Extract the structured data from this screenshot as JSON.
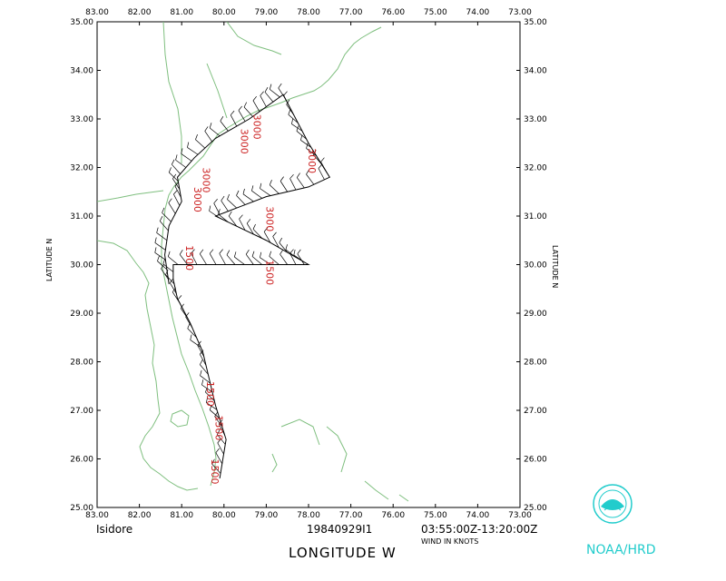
{
  "header": {
    "storm_name": "Isidore",
    "flight_id": "19840929I1",
    "time_range": "03:55:00Z-13:20:00Z",
    "wind_units": "WIND IN KNOTS"
  },
  "axes": {
    "x_title": "LONGITUDE   W",
    "y_title": "LATITUDE   N",
    "x_ticks": [
      "83.00",
      "82.00",
      "81.00",
      "80.00",
      "79.00",
      "78.00",
      "77.00",
      "76.00",
      "75.00",
      "74.00",
      "73.00"
    ],
    "y_ticks": [
      "35.00",
      "34.00",
      "33.00",
      "32.00",
      "31.00",
      "30.00",
      "29.00",
      "28.00",
      "27.00",
      "26.00",
      "25.00"
    ],
    "lon_range": [
      -83,
      -73
    ],
    "lat_range": [
      25,
      35
    ]
  },
  "agency": "NOAA/HRD",
  "colors": {
    "coast": "#7fbf7f",
    "track": "#000000",
    "altitude": "#cc2222",
    "agency": "#22cccc"
  },
  "logo_icon": "noaa-logo-icon",
  "flight_track": [
    [
      -80.1,
      25.6
    ],
    [
      -79.95,
      26.4
    ],
    [
      -80.2,
      27.1
    ],
    [
      -80.5,
      28.2
    ],
    [
      -80.8,
      28.8
    ],
    [
      -81.1,
      29.3
    ],
    [
      -81.2,
      29.7
    ],
    [
      -81.2,
      30.0
    ],
    [
      -80.3,
      30.0
    ],
    [
      -79.4,
      30.0
    ],
    [
      -78.0,
      30.0
    ],
    [
      -79.0,
      30.5
    ],
    [
      -80.2,
      31.0
    ],
    [
      -79.6,
      31.2
    ],
    [
      -79.0,
      31.4
    ],
    [
      -78.0,
      31.6
    ],
    [
      -77.5,
      31.8
    ],
    [
      -78.0,
      32.5
    ],
    [
      -78.6,
      33.5
    ],
    [
      -79.4,
      33.0
    ],
    [
      -80.2,
      32.6
    ],
    [
      -80.7,
      32.2
    ],
    [
      -81.1,
      31.8
    ],
    [
      -81.0,
      31.3
    ],
    [
      -81.3,
      30.8
    ],
    [
      -81.4,
      30.2
    ],
    [
      -81.3,
      29.6
    ]
  ],
  "altitude_labels": [
    {
      "lon": -79.3,
      "lat": 33.1,
      "text": "3000"
    },
    {
      "lon": -79.6,
      "lat": 32.8,
      "text": "3000"
    },
    {
      "lon": -80.5,
      "lat": 32.0,
      "text": "3000"
    },
    {
      "lon": -80.7,
      "lat": 31.6,
      "text": "3000"
    },
    {
      "lon": -78.0,
      "lat": 32.4,
      "text": "3000"
    },
    {
      "lon": -79.0,
      "lat": 31.2,
      "text": "3000"
    },
    {
      "lon": -79.0,
      "lat": 30.1,
      "text": "1500"
    },
    {
      "lon": -80.9,
      "lat": 30.4,
      "text": "1500"
    },
    {
      "lon": -80.4,
      "lat": 27.6,
      "text": "1500"
    },
    {
      "lon": -80.2,
      "lat": 26.9,
      "text": "1500"
    },
    {
      "lon": -80.3,
      "lat": 26.0,
      "text": "1500"
    }
  ]
}
